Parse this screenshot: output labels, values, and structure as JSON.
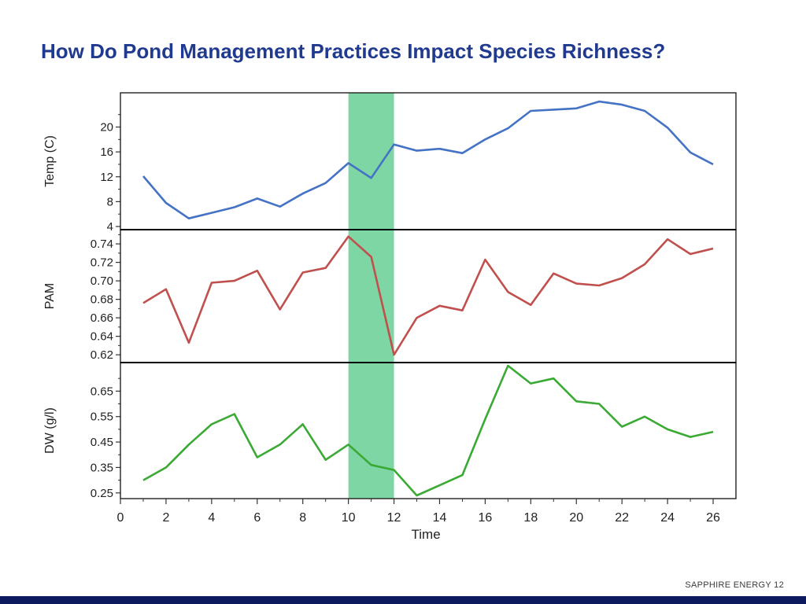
{
  "slide": {
    "title": "How Do Pond Management Practices Impact Species Richness?",
    "footer_company": "SAPPHIRE ENERGY",
    "page_number": "12"
  },
  "colors": {
    "title": "#1f3a8f",
    "footer_bar": "#0d1b5e",
    "highlight_band": "#7ed6a4"
  },
  "chart_data": {
    "type": "line",
    "xlabel": "Time",
    "xlim": [
      0,
      27
    ],
    "xticks": [
      0,
      2,
      4,
      6,
      8,
      10,
      12,
      14,
      16,
      18,
      20,
      22,
      24,
      26
    ],
    "x": [
      1,
      2,
      3,
      4,
      5,
      6,
      7,
      8,
      9,
      10,
      11,
      12,
      13,
      14,
      15,
      16,
      17,
      18,
      19,
      20,
      21,
      22,
      23,
      24,
      25,
      26
    ],
    "highlight_region": [
      10,
      12
    ],
    "panels": [
      {
        "ylabel": "Temp (C)",
        "color": "#4472c4",
        "ylim": [
          4,
          25
        ],
        "yticks": [
          4,
          8,
          12,
          16,
          20
        ],
        "tick_labels": [
          "4",
          "8",
          "12",
          "16",
          "20"
        ],
        "values": [
          12.1,
          7.8,
          5.3,
          6.2,
          7.1,
          8.5,
          7.2,
          9.3,
          11.0,
          14.2,
          11.8,
          17.2,
          16.2,
          16.5,
          15.8,
          18.0,
          19.8,
          22.6,
          22.8,
          23.0,
          24.1,
          23.6,
          22.6,
          19.9,
          15.9,
          14.0
        ]
      },
      {
        "ylabel": "PAM",
        "color": "#c0504d",
        "ylim": [
          0.615,
          0.752
        ],
        "yticks": [
          0.62,
          0.64,
          0.66,
          0.68,
          0.7,
          0.72,
          0.74
        ],
        "tick_labels": [
          "0.62",
          "0.64",
          "0.66",
          "0.68",
          "0.70",
          "0.72",
          "0.74"
        ],
        "values": [
          0.676,
          0.691,
          0.633,
          0.698,
          0.7,
          0.711,
          0.669,
          0.709,
          0.714,
          0.748,
          0.726,
          0.62,
          0.66,
          0.673,
          0.668,
          0.723,
          0.688,
          0.674,
          0.708,
          0.697,
          0.695,
          0.703,
          0.718,
          0.745,
          0.729,
          0.735
        ]
      },
      {
        "ylabel": "DW (g/l)",
        "color": "#3aaa35",
        "ylim": [
          0.24,
          0.75
        ],
        "yticks": [
          0.25,
          0.35,
          0.45,
          0.55,
          0.65
        ],
        "tick_labels": [
          "0.25",
          "0.35",
          "0.45",
          "0.55",
          "0.65"
        ],
        "values": [
          0.3,
          0.35,
          0.44,
          0.52,
          0.56,
          0.39,
          0.44,
          0.52,
          0.38,
          0.44,
          0.36,
          0.34,
          0.24,
          0.28,
          0.32,
          0.54,
          0.75,
          0.68,
          0.7,
          0.61,
          0.6,
          0.51,
          0.55,
          0.5,
          0.47,
          0.49
        ]
      }
    ]
  }
}
